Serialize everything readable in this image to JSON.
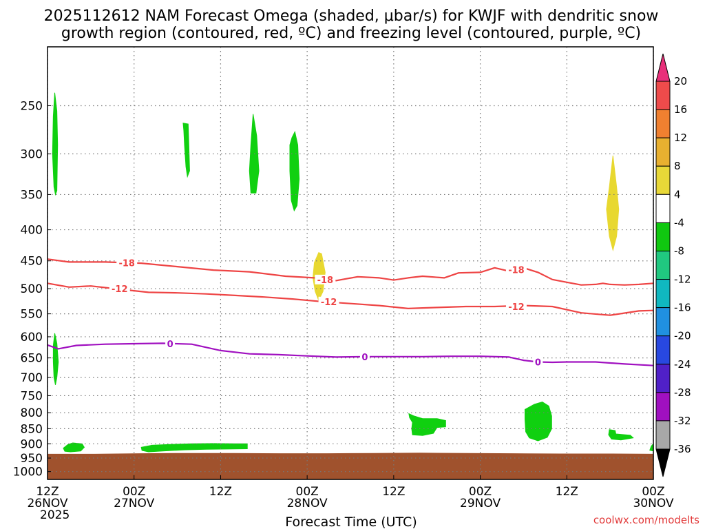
{
  "chart_data": {
    "type": "heatmap",
    "title_lines": [
      "2025112612 NAM Forecast Omega (shaded, μbar/s) for KWJF with dendritic snow",
      "growth region (contoured, red, ºC) and freezing level (contoured, purple, ºC)"
    ],
    "xlabel": "Forecast Time (UTC)",
    "credit": "coolwx.com/modelts",
    "y_axis": {
      "ticks": [
        250,
        300,
        350,
        400,
        450,
        500,
        550,
        600,
        650,
        700,
        750,
        800,
        850,
        900,
        950,
        1000
      ],
      "range": [
        200,
        1030
      ],
      "scale": "log-inverted"
    },
    "x_axis": {
      "range": [
        0,
        84
      ],
      "ticks": [
        {
          "h": 0,
          "l1": "12Z",
          "l2": "26NOV",
          "l3": "2025"
        },
        {
          "h": 12,
          "l1": "00Z",
          "l2": "27NOV",
          "l3": ""
        },
        {
          "h": 24,
          "l1": "12Z",
          "l2": "",
          "l3": ""
        },
        {
          "h": 36,
          "l1": "00Z",
          "l2": "28NOV",
          "l3": ""
        },
        {
          "h": 48,
          "l1": "12Z",
          "l2": "",
          "l3": ""
        },
        {
          "h": 60,
          "l1": "00Z",
          "l2": "29NOV",
          "l3": ""
        },
        {
          "h": 72,
          "l1": "12Z",
          "l2": "",
          "l3": ""
        },
        {
          "h": 84,
          "l1": "00Z",
          "l2": "30NOV",
          "l3": ""
        }
      ]
    },
    "colorbar": {
      "labels": [
        "20",
        "16",
        "12",
        "8",
        "4",
        "-4",
        "-8",
        "-12",
        "-16",
        "-20",
        "-24",
        "-28",
        "-32",
        "-36"
      ],
      "colors": [
        "#e8307a",
        "#ee4b4b",
        "#f08030",
        "#e8b030",
        "#e8d838",
        "#ffffff",
        "#10c810",
        "#20c880",
        "#10b8c0",
        "#2090e0",
        "#2848e0",
        "#5020c8",
        "#a010c0",
        "#a8a8a8",
        "#000000"
      ]
    },
    "ground": {
      "color": "#a0522d",
      "surface_p": [
        935,
        935,
        933,
        932,
        932,
        933,
        933,
        932,
        931,
        932,
        933,
        934,
        934,
        935
      ]
    },
    "omega_areas": [
      {
        "color": "#10d010",
        "value": -4,
        "points": [
          [
            1.0,
            238
          ],
          [
            1.3,
            255
          ],
          [
            1.4,
            290
          ],
          [
            1.3,
            345
          ],
          [
            1.1,
            350
          ],
          [
            0.9,
            340
          ],
          [
            0.7,
            300
          ],
          [
            0.8,
            260
          ]
        ]
      },
      {
        "color": "#10d010",
        "value": -4,
        "points": [
          [
            1.0,
            592
          ],
          [
            1.3,
            615
          ],
          [
            1.5,
            660
          ],
          [
            1.3,
            700
          ],
          [
            1.1,
            720
          ],
          [
            0.9,
            700
          ],
          [
            0.8,
            660
          ],
          [
            0.8,
            620
          ]
        ]
      },
      {
        "color": "#10d010",
        "value": -4,
        "points": [
          [
            2.2,
            915
          ],
          [
            2.8,
            903
          ],
          [
            3.5,
            897
          ],
          [
            4.8,
            900
          ],
          [
            5.1,
            912
          ],
          [
            4.6,
            925
          ],
          [
            3.2,
            928
          ],
          [
            2.4,
            926
          ]
        ]
      },
      {
        "color": "#10d010",
        "value": -4,
        "points": [
          [
            18.8,
            267
          ],
          [
            19.5,
            268
          ],
          [
            19.6,
            290
          ],
          [
            19.7,
            320
          ],
          [
            19.4,
            327
          ],
          [
            19.2,
            315
          ],
          [
            19.0,
            290
          ],
          [
            18.9,
            275
          ]
        ]
      },
      {
        "color": "#10d010",
        "value": -4,
        "points": [
          [
            28.5,
            258
          ],
          [
            29.0,
            280
          ],
          [
            29.3,
            320
          ],
          [
            28.9,
            348
          ],
          [
            28.2,
            348
          ],
          [
            28.0,
            320
          ],
          [
            28.2,
            290
          ]
        ]
      },
      {
        "color": "#10d010",
        "value": -4,
        "points": [
          [
            33.9,
            282
          ],
          [
            34.3,
            276
          ],
          [
            34.7,
            290
          ],
          [
            34.9,
            330
          ],
          [
            34.6,
            365
          ],
          [
            34.2,
            372
          ],
          [
            33.8,
            358
          ],
          [
            33.6,
            320
          ],
          [
            33.6,
            290
          ]
        ]
      },
      {
        "color": "#10d010",
        "value": -4,
        "points": [
          [
            13.0,
            912
          ],
          [
            14.5,
            905
          ],
          [
            17.0,
            902
          ],
          [
            20.0,
            900
          ],
          [
            23.0,
            899
          ],
          [
            26.0,
            900
          ],
          [
            27.7,
            900
          ],
          [
            27.7,
            917
          ],
          [
            25.0,
            918
          ],
          [
            22.0,
            919
          ],
          [
            19.0,
            921
          ],
          [
            16.0,
            925
          ],
          [
            14.0,
            928
          ],
          [
            13.1,
            923
          ]
        ]
      },
      {
        "color": "#10d010",
        "value": -4,
        "points": [
          [
            50.1,
            803
          ],
          [
            50.8,
            810
          ],
          [
            52.0,
            818
          ],
          [
            54.0,
            818
          ],
          [
            55.2,
            824
          ],
          [
            55.2,
            844
          ],
          [
            54.0,
            846
          ],
          [
            53.5,
            865
          ],
          [
            52.0,
            872
          ],
          [
            50.6,
            870
          ],
          [
            50.5,
            850
          ],
          [
            50.6,
            830
          ],
          [
            50.2,
            815
          ]
        ]
      },
      {
        "color": "#10d010",
        "value": -4,
        "points": [
          [
            66.2,
            790
          ],
          [
            67.5,
            775
          ],
          [
            68.6,
            768
          ],
          [
            69.5,
            780
          ],
          [
            69.9,
            810
          ],
          [
            69.9,
            850
          ],
          [
            69.3,
            878
          ],
          [
            68.0,
            890
          ],
          [
            66.8,
            880
          ],
          [
            66.3,
            860
          ],
          [
            66.2,
            820
          ]
        ]
      },
      {
        "color": "#10d010",
        "value": -4,
        "points": [
          [
            77.9,
            853
          ],
          [
            78.7,
            856
          ],
          [
            78.8,
            867
          ],
          [
            80.8,
            871
          ],
          [
            81.2,
            880
          ],
          [
            79.5,
            887
          ],
          [
            78.2,
            884
          ],
          [
            77.8,
            870
          ]
        ]
      },
      {
        "color": "#10d010",
        "value": -4,
        "points": [
          [
            83.7,
            908
          ],
          [
            84.0,
            900
          ],
          [
            84.0,
            925
          ],
          [
            83.5,
            922
          ]
        ]
      },
      {
        "color": "#e8d830",
        "value": 4,
        "points": [
          [
            37.0,
            453
          ],
          [
            37.6,
            436
          ],
          [
            38.0,
            438
          ],
          [
            38.5,
            470
          ],
          [
            38.2,
            505
          ],
          [
            37.6,
            523
          ],
          [
            37.1,
            505
          ],
          [
            36.8,
            480
          ]
        ]
      },
      {
        "color": "#e8d830",
        "value": 4,
        "points": [
          [
            77.9,
            340
          ],
          [
            78.4,
            302
          ],
          [
            78.9,
            340
          ],
          [
            79.2,
            370
          ],
          [
            78.9,
            410
          ],
          [
            78.4,
            432
          ],
          [
            77.9,
            410
          ],
          [
            77.5,
            370
          ]
        ]
      }
    ],
    "contours": [
      {
        "label": "-18",
        "color": "#ee4444",
        "x": [
          0,
          3,
          8,
          13,
          18,
          23,
          28,
          33,
          37,
          40,
          43,
          46,
          48,
          50,
          52,
          55,
          57,
          60,
          62,
          64,
          66,
          68,
          70,
          72,
          74,
          76,
          77,
          78,
          80,
          82,
          84
        ],
        "y": [
          447,
          452,
          452,
          454,
          460,
          466,
          469,
          477,
          480,
          485,
          478,
          480,
          484,
          480,
          477,
          480,
          471,
          470,
          462,
          468,
          462,
          470,
          483,
          488,
          493,
          492,
          490,
          492,
          493,
          492,
          490
        ],
        "labels_at": [
          [
            11,
            453
          ],
          [
            38.5,
            483
          ],
          [
            65,
            465
          ]
        ]
      },
      {
        "label": "-12",
        "color": "#ee4444",
        "x": [
          0,
          3,
          6,
          10,
          14,
          18,
          22,
          26,
          30,
          34,
          38,
          42,
          46,
          50,
          54,
          58,
          62,
          66,
          70,
          74,
          78,
          82,
          84
        ],
        "y": [
          490,
          497,
          495,
          501,
          507,
          508,
          510,
          513,
          516,
          520,
          525,
          529,
          533,
          539,
          537,
          535,
          535,
          533,
          535,
          548,
          553,
          544,
          543
        ],
        "labels_at": [
          [
            10,
            500
          ],
          [
            39,
            525
          ],
          [
            65,
            535
          ]
        ]
      },
      {
        "label": "0",
        "color": "#a010c0",
        "x": [
          0,
          1.5,
          4,
          8,
          12,
          16,
          20,
          24,
          28,
          32,
          36,
          40,
          44,
          48,
          52,
          56,
          60,
          64,
          66,
          68,
          70,
          72,
          76,
          80,
          84
        ],
        "y": [
          619,
          628,
          620,
          617,
          616,
          615,
          617,
          632,
          640,
          642,
          645,
          648,
          647,
          647,
          647,
          646,
          646,
          648,
          656,
          660,
          661,
          660,
          660,
          665,
          669
        ],
        "labels_at": [
          [
            17,
            616
          ],
          [
            44,
            647
          ],
          [
            68,
            660
          ]
        ]
      }
    ]
  }
}
